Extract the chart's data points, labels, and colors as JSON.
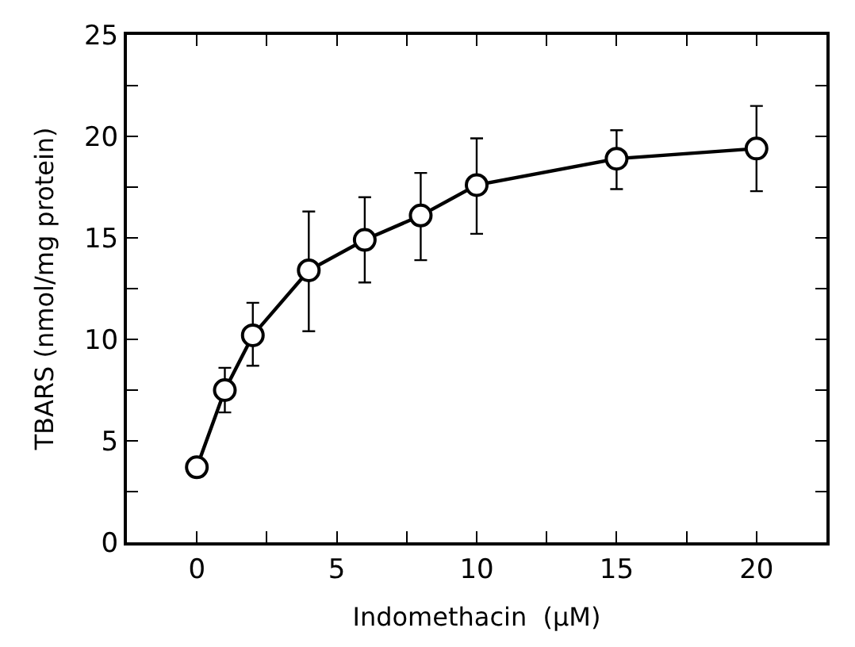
{
  "chart_data": {
    "type": "line",
    "xlabel": "Indomethacin  (μM)",
    "ylabel": "TBARS (nmol/mg protein)",
    "x": [
      0,
      1,
      2,
      4,
      6,
      8,
      10,
      15,
      20
    ],
    "series": [
      {
        "color": "#000000",
        "values": [
          3.7,
          7.5,
          10.2,
          13.4,
          14.9,
          16.1,
          17.6,
          18.9,
          19.4
        ],
        "errors": [
          null,
          [
            6.4,
            8.6
          ],
          [
            8.7,
            11.8
          ],
          [
            10.4,
            16.3
          ],
          [
            12.8,
            17.0
          ],
          [
            13.9,
            18.2
          ],
          [
            15.2,
            19.9
          ],
          [
            17.4,
            20.3
          ],
          [
            17.3,
            21.5
          ]
        ]
      }
    ],
    "xlim": [
      -2.5,
      22.5
    ],
    "ylim": [
      0,
      25
    ],
    "xticks": [
      0,
      {
        "value": 2.5,
        "label": null
      },
      5,
      {
        "value": 7.5,
        "label": null
      },
      10,
      {
        "value": 12.5,
        "label": null
      },
      15,
      {
        "value": 17.5,
        "label": null
      },
      20
    ],
    "yticks": [
      0,
      {
        "value": 2.5,
        "label": null
      },
      5,
      {
        "value": 7.5,
        "label": null
      },
      10,
      {
        "value": 12.5,
        "label": null
      },
      15,
      {
        "value": 17.5,
        "label": null
      },
      20,
      {
        "value": 22.5,
        "label": null
      },
      25
    ],
    "marker": "circle",
    "line_style": "solid"
  }
}
